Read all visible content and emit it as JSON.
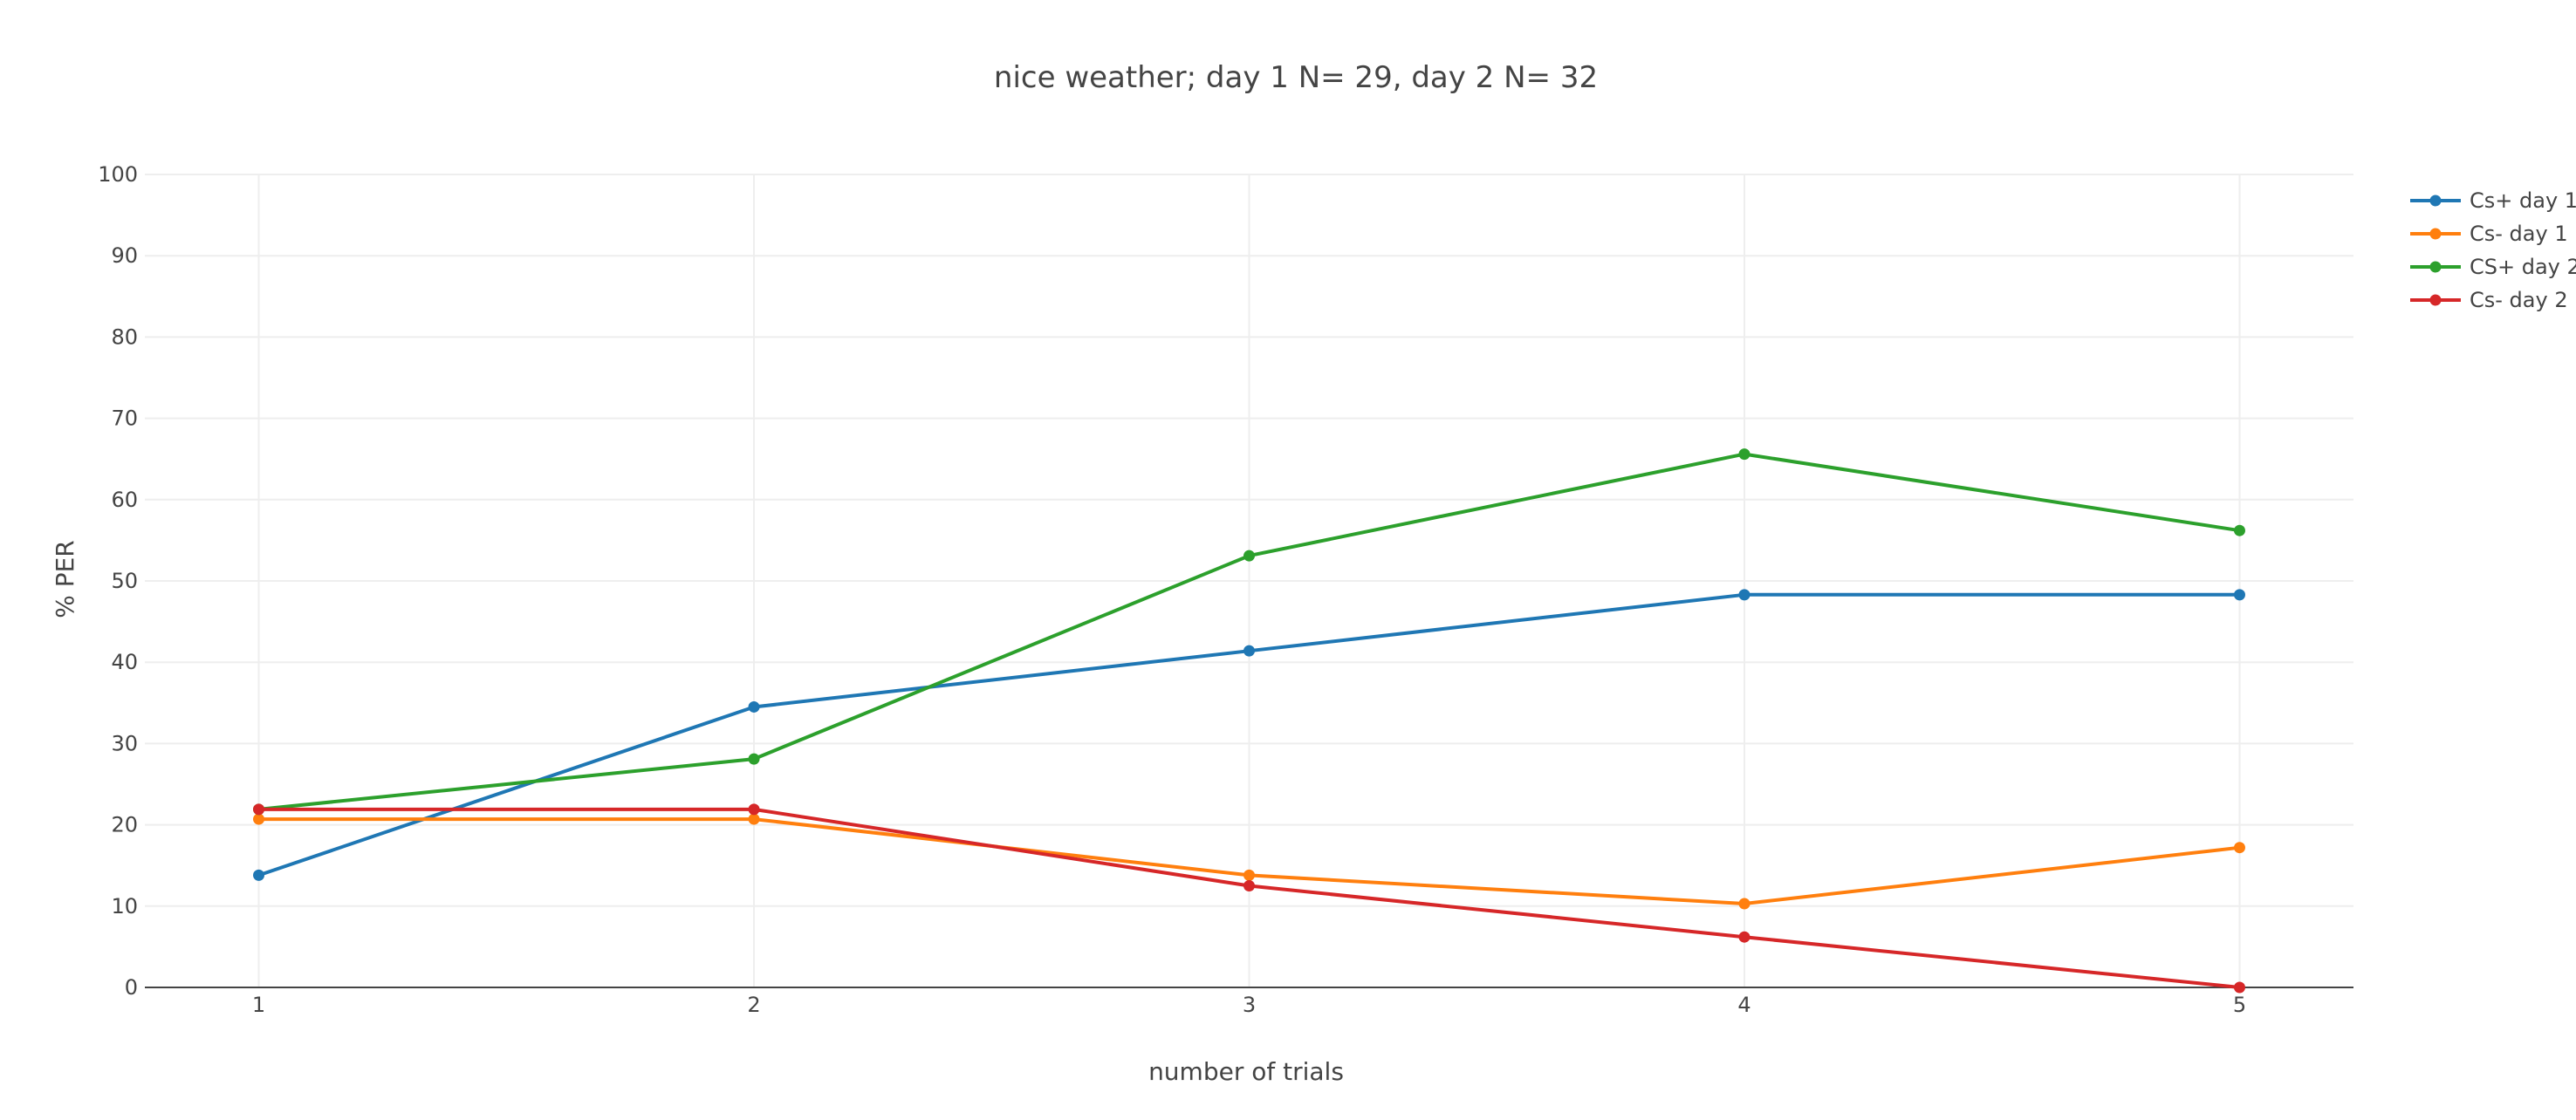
{
  "chart_data": {
    "type": "line",
    "title": "nice weather; day 1 N= 29, day 2 N= 32",
    "xlabel": "number of trials",
    "ylabel": "% PER",
    "x": [
      1,
      2,
      3,
      4,
      5
    ],
    "xlim": [
      0.77,
      5.23
    ],
    "ylim": [
      0,
      100
    ],
    "x_ticks": [
      "1",
      "2",
      "3",
      "4",
      "5"
    ],
    "y_ticks": [
      "0",
      "10",
      "20",
      "30",
      "40",
      "50",
      "60",
      "70",
      "80",
      "90",
      "100"
    ],
    "grid": true,
    "legend_position": "top-right",
    "series": [
      {
        "name": "Cs+ day 1",
        "color": "#1f77b4",
        "values": [
          13.8,
          34.5,
          41.4,
          48.3,
          48.3
        ]
      },
      {
        "name": "Cs-  day 1",
        "color": "#ff7f0e",
        "values": [
          20.7,
          20.7,
          13.8,
          10.3,
          17.2
        ]
      },
      {
        "name": "CS+ day 2",
        "color": "#2ca02c",
        "values": [
          21.9,
          28.1,
          53.1,
          65.6,
          56.2
        ]
      },
      {
        "name": "Cs-  day 2",
        "color": "#d62728",
        "values": [
          21.9,
          21.9,
          12.5,
          6.2,
          0
        ]
      }
    ]
  }
}
